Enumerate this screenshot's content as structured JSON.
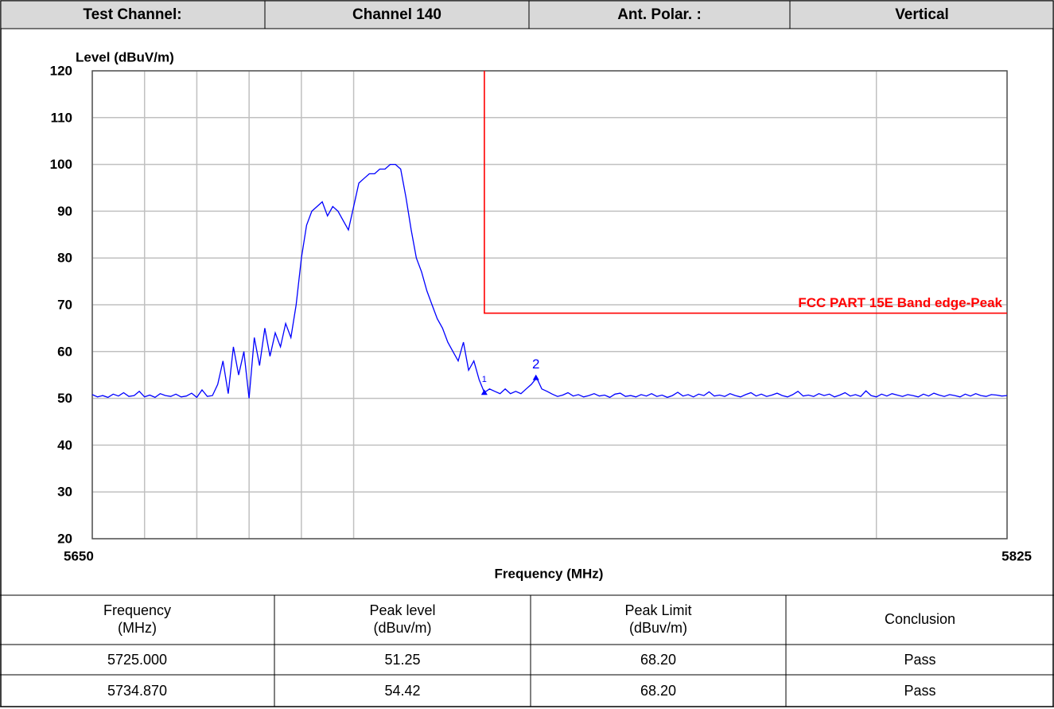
{
  "header": {
    "cells": [
      "Test Channel:",
      "Channel 140",
      "Ant. Polar. :",
      "Vertical"
    ]
  },
  "chart_data": {
    "type": "line",
    "ylabel": "Level (dBuV/m)",
    "xlabel": "Frequency (MHz)",
    "xlim": [
      5650,
      5825
    ],
    "xticks": [
      5650,
      5825
    ],
    "xgrid": [
      5660,
      5670,
      5680,
      5690,
      5700,
      5800
    ],
    "ylim": [
      20,
      120
    ],
    "yticks": [
      20,
      30,
      40,
      50,
      60,
      70,
      80,
      90,
      100,
      110,
      120
    ],
    "grid": true,
    "series": [
      {
        "name": "Level",
        "color": "#0000ff",
        "x": [
          5650,
          5651,
          5652,
          5653,
          5654,
          5655,
          5656,
          5657,
          5658,
          5659,
          5660,
          5661,
          5662,
          5663,
          5664,
          5665,
          5666,
          5667,
          5668,
          5669,
          5670,
          5671,
          5672,
          5673,
          5674,
          5675,
          5676,
          5677,
          5678,
          5679,
          5680,
          5681,
          5682,
          5683,
          5684,
          5685,
          5686,
          5687,
          5688,
          5689,
          5690,
          5691,
          5692,
          5693,
          5694,
          5695,
          5696,
          5697,
          5698,
          5699,
          5700,
          5701,
          5702,
          5703,
          5704,
          5705,
          5706,
          5707,
          5708,
          5709,
          5710,
          5711,
          5712,
          5713,
          5714,
          5715,
          5716,
          5717,
          5718,
          5719,
          5720,
          5721,
          5722,
          5723,
          5724,
          5725,
          5726,
          5727,
          5728,
          5729,
          5730,
          5731,
          5732,
          5733,
          5734,
          5735,
          5736,
          5737,
          5738,
          5739,
          5740,
          5741,
          5742,
          5743,
          5744,
          5745,
          5746,
          5747,
          5748,
          5749,
          5750,
          5751,
          5752,
          5753,
          5754,
          5755,
          5756,
          5757,
          5758,
          5759,
          5760,
          5761,
          5762,
          5763,
          5764,
          5765,
          5766,
          5767,
          5768,
          5769,
          5770,
          5771,
          5772,
          5773,
          5774,
          5775,
          5776,
          5777,
          5778,
          5779,
          5780,
          5781,
          5782,
          5783,
          5784,
          5785,
          5786,
          5787,
          5788,
          5789,
          5790,
          5791,
          5792,
          5793,
          5794,
          5795,
          5796,
          5797,
          5798,
          5799,
          5800,
          5801,
          5802,
          5803,
          5804,
          5805,
          5806,
          5807,
          5808,
          5809,
          5810,
          5811,
          5812,
          5813,
          5814,
          5815,
          5816,
          5817,
          5818,
          5819,
          5820,
          5821,
          5822,
          5823,
          5824,
          5825
        ],
        "values": [
          50.8,
          50.3,
          50.6,
          50.2,
          50.9,
          50.5,
          51.2,
          50.4,
          50.6,
          51.5,
          50.3,
          50.7,
          50.2,
          51.0,
          50.6,
          50.4,
          50.9,
          50.3,
          50.5,
          51.1,
          50.2,
          51.8,
          50.4,
          50.6,
          53,
          58,
          51,
          61,
          55,
          60,
          50,
          63,
          57,
          65,
          59,
          64,
          61,
          66,
          63,
          70,
          80,
          87,
          90,
          91,
          92,
          89,
          91,
          90,
          88,
          86,
          91,
          96,
          97,
          98,
          98,
          99,
          99,
          100,
          100,
          99,
          93,
          86,
          80,
          77,
          73,
          70,
          67,
          65,
          62,
          60,
          58,
          62,
          56,
          58,
          54,
          51.25,
          52,
          51.5,
          51,
          52,
          51,
          51.5,
          51,
          52,
          53,
          54.4,
          52,
          51.5,
          50.9,
          50.4,
          50.7,
          51.2,
          50.5,
          50.8,
          50.3,
          50.6,
          51.0,
          50.5,
          50.7,
          50.2,
          50.9,
          51.1,
          50.4,
          50.6,
          50.3,
          50.8,
          50.5,
          51.0,
          50.4,
          50.7,
          50.2,
          50.6,
          51.3,
          50.5,
          50.8,
          50.3,
          50.9,
          50.6,
          51.4,
          50.5,
          50.7,
          50.4,
          51.0,
          50.6,
          50.3,
          50.8,
          51.2,
          50.5,
          50.9,
          50.4,
          50.7,
          51.1,
          50.6,
          50.3,
          50.8,
          51.5,
          50.5,
          50.7,
          50.4,
          51.0,
          50.6,
          50.9,
          50.3,
          50.7,
          51.2,
          50.5,
          50.8,
          50.4,
          51.6,
          50.6,
          50.3,
          50.9,
          50.5,
          51.0,
          50.7,
          50.4,
          50.8,
          50.6,
          50.3,
          50.9,
          50.5,
          51.1,
          50.7,
          50.4,
          50.8,
          50.6,
          50.3,
          50.9,
          50.5,
          51.0,
          50.6,
          50.4,
          50.8,
          50.7,
          50.5,
          50.6
        ]
      },
      {
        "name": "FCC PART 15E Band edge-Peak",
        "color": "#ff0000",
        "x": [
          5725,
          5725,
          5825
        ],
        "values": [
          120,
          68.2,
          68.2
        ]
      }
    ],
    "markers": [
      {
        "label": "1",
        "x": 5725.0,
        "y": 51.25
      },
      {
        "label": "2",
        "x": 5734.87,
        "y": 54.42
      }
    ]
  },
  "table": {
    "columns": [
      [
        "Frequency",
        "(MHz)"
      ],
      [
        "Peak level",
        "(dBuv/m)"
      ],
      [
        "Peak Limit",
        "(dBuv/m)"
      ],
      [
        "Conclusion"
      ]
    ],
    "rows": [
      [
        "5725.000",
        "51.25",
        "68.20",
        "Pass"
      ],
      [
        "5734.870",
        "54.42",
        "68.20",
        "Pass"
      ]
    ]
  }
}
